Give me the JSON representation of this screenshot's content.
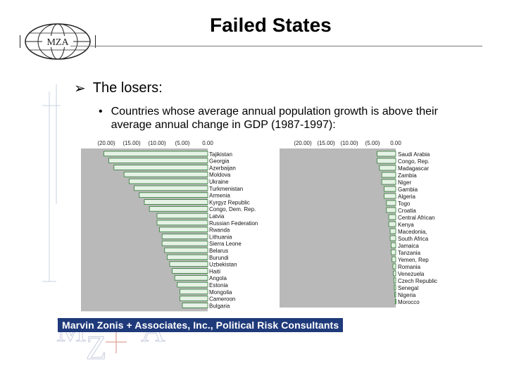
{
  "header": {
    "logo_text": "MZA",
    "title": "Failed States"
  },
  "content": {
    "bullet_main": "The losers:",
    "bullet_sub": "Countries whose average annual population growth is above their average annual change in GDP (1987-1997):"
  },
  "footer": {
    "text": "Marvin Zonis + Associates, Inc., Political Risk Consultants"
  },
  "colors": {
    "bar_fill": "#e6f2e6",
    "bar_border": "#2e7d32",
    "plot_bg": "#b9b9b9",
    "footer_bg": "#1f3a7a"
  },
  "chart_data": [
    {
      "type": "bar",
      "orientation": "horizontal",
      "title": "",
      "xlabel": "",
      "ylabel": "",
      "xlim": [
        -25,
        0
      ],
      "tick_labels": [
        "(20.00)",
        "(15.00)",
        "(10.00)",
        "(5.00)",
        "0.00"
      ],
      "tick_values": [
        -20,
        -15,
        -10,
        -5,
        0
      ],
      "categories": [
        "Tajikistan",
        "Georgia",
        "Azerbaijan",
        "Moldova",
        "Ukraine",
        "Turkmenistan",
        "Armenia",
        "Kyrgyz Republic",
        "Congo, Dem. Rep.",
        "Latvia",
        "Russian Federation",
        "Rwanda",
        "Lithuania",
        "Sierra Leone",
        "Belarus",
        "Burundi",
        "Uzbekistan",
        "Haiti",
        "Angola",
        "Estonia",
        "Mongolia",
        "Cameroon",
        "Bulgaria"
      ],
      "values": [
        -20.5,
        -19.5,
        -18.5,
        -16.5,
        -15.5,
        -14.5,
        -13.5,
        -12.5,
        -11.5,
        -10.0,
        -10.0,
        -9.5,
        -9.0,
        -9.0,
        -8.5,
        -8.0,
        -7.5,
        -7.0,
        -6.5,
        -6.0,
        -5.5,
        -5.5,
        -5.0
      ]
    },
    {
      "type": "bar",
      "orientation": "horizontal",
      "title": "",
      "xlabel": "",
      "ylabel": "",
      "xlim": [
        -25,
        0
      ],
      "tick_labels": [
        "(20.00)",
        "(15.00)",
        "(10.00)",
        "(5.00)",
        "0.00"
      ],
      "tick_values": [
        -20,
        -15,
        -10,
        -5,
        0
      ],
      "categories": [
        "Saudi Arabia",
        "Congo, Rep.",
        "Madagascar",
        "Zambia",
        "Niger",
        "Gambia",
        "Algeria",
        "Togo",
        "Croatia",
        "Central African",
        "Kenya",
        "Macedonia,",
        "South Africa",
        "Jamaica",
        "Tanzania",
        "Yemen, Rep",
        "Romania",
        "Venezuela",
        "Czech Republic",
        "Senegal",
        "Nigeria",
        "Morocco"
      ],
      "values": [
        -4.0,
        -4.0,
        -3.5,
        -3.0,
        -3.0,
        -2.5,
        -2.5,
        -2.0,
        -2.0,
        -1.5,
        -1.5,
        -1.2,
        -1.2,
        -1.0,
        -1.0,
        -0.8,
        -0.6,
        -0.5,
        -0.4,
        -0.3,
        -0.2,
        -0.1
      ]
    }
  ]
}
